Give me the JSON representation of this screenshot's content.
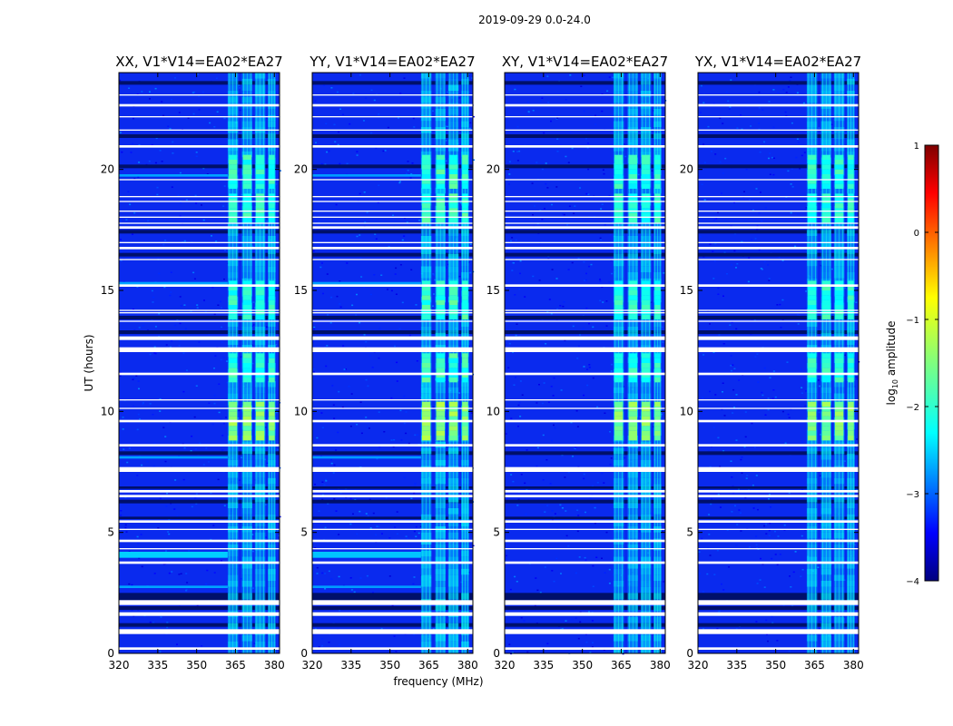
{
  "chart_data": {
    "type": "heatmap",
    "suptitle": "2019-09-29 0.0-24.0",
    "xlabel": "frequency (MHz)",
    "ylabel": "UT (hours)",
    "xlim": [
      320,
      382
    ],
    "ylim": [
      0,
      24
    ],
    "x_ticks": [
      320,
      335,
      350,
      365,
      380
    ],
    "y_ticks": [
      0,
      5,
      10,
      15,
      20
    ],
    "colormap": "jet",
    "colorbar": {
      "label": "log10 amplitude",
      "label_main": "log",
      "label_sub": "10",
      "label_rest": " amplitude",
      "range": [
        -4,
        1
      ],
      "ticks": [
        "1",
        "0",
        "−1",
        "−2",
        "−3",
        "−4"
      ],
      "tick_values": [
        1,
        0,
        -1,
        -2,
        -3,
        -4
      ]
    },
    "panels": [
      {
        "title": "XX, V1*V14=EA02*EA27",
        "rfi_strength": 0.85,
        "low_freq_band_strength": 0.9
      },
      {
        "title": "YY, V1*V14=EA02*EA27",
        "rfi_strength": 1.0,
        "low_freq_band_strength": 0.8
      },
      {
        "title": "XY, V1*V14=EA02*EA27",
        "rfi_strength": 0.8,
        "low_freq_band_strength": 0.15
      },
      {
        "title": "YX, V1*V14=EA02*EA27",
        "rfi_strength": 0.8,
        "low_freq_band_strength": 0.15
      }
    ],
    "rfi_band_mhz": [
      362,
      381
    ],
    "rfi_channels_mhz": [
      [
        362,
        366
      ],
      [
        367.5,
        371.5
      ],
      [
        372.5,
        376.5
      ],
      [
        377.5,
        380.5
      ]
    ],
    "bright_rfi_periods_hours": [
      [
        8.8,
        10.2
      ],
      [
        17.8,
        18.8
      ],
      [
        19.2,
        20.5
      ],
      [
        13.8,
        15.2
      ],
      [
        11.2,
        12.3
      ]
    ],
    "flagged_gaps_hours": [
      [
        0.15,
        0.25
      ],
      [
        0.8,
        1.0
      ],
      [
        1.55,
        1.7
      ],
      [
        2.0,
        2.2
      ],
      [
        3.7,
        3.8
      ],
      [
        4.3,
        4.35
      ],
      [
        4.6,
        4.7
      ],
      [
        5.1,
        5.15
      ],
      [
        5.4,
        5.5
      ],
      [
        6.45,
        6.55
      ],
      [
        6.65,
        6.75
      ],
      [
        7.5,
        7.7
      ],
      [
        8.55,
        8.65
      ],
      [
        9.55,
        9.65
      ],
      [
        10.1,
        10.15
      ],
      [
        10.45,
        10.5
      ],
      [
        11.5,
        11.6
      ],
      [
        12.45,
        12.65
      ],
      [
        12.95,
        13.1
      ],
      [
        13.7,
        13.75
      ],
      [
        14.05,
        14.1
      ],
      [
        14.15,
        14.2
      ],
      [
        15.15,
        15.25
      ],
      [
        16.25,
        16.3
      ],
      [
        16.7,
        16.8
      ],
      [
        16.95,
        17.0
      ],
      [
        17.55,
        17.65
      ],
      [
        17.75,
        17.8
      ],
      [
        18.0,
        18.05
      ],
      [
        18.25,
        18.3
      ],
      [
        18.65,
        18.7
      ],
      [
        18.85,
        18.9
      ],
      [
        19.55,
        19.6
      ],
      [
        20.9,
        21.0
      ],
      [
        21.6,
        21.65
      ],
      [
        22.15,
        22.2
      ],
      [
        22.6,
        22.7
      ],
      [
        23.05,
        23.1
      ]
    ],
    "dark_rows_hours": [
      [
        1.1,
        1.25
      ],
      [
        1.8,
        1.95
      ],
      [
        2.2,
        2.5
      ],
      [
        5.55,
        5.65
      ],
      [
        6.2,
        6.35
      ],
      [
        6.8,
        6.9
      ],
      [
        8.2,
        8.35
      ],
      [
        13.2,
        13.35
      ],
      [
        13.8,
        13.95
      ],
      [
        16.4,
        16.55
      ],
      [
        17.35,
        17.5
      ],
      [
        20.05,
        20.2
      ],
      [
        21.3,
        21.45
      ],
      [
        23.5,
        23.65
      ]
    ],
    "low_freq_bands_hours": [
      [
        3.95,
        4.2
      ],
      [
        2.7,
        2.8
      ],
      [
        8.05,
        8.15
      ],
      [
        15.2,
        15.35
      ],
      [
        19.7,
        19.8
      ]
    ]
  }
}
